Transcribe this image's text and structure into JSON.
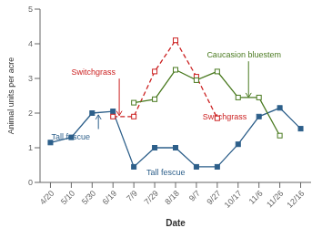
{
  "chart_data": {
    "type": "line",
    "xlabel": "Date",
    "ylabel": "Animal units per acre",
    "categories": [
      "4/20",
      "5/10",
      "5/30",
      "6/19",
      "7/9",
      "7/29",
      "8/18",
      "9/7",
      "9/27",
      "10/17",
      "11/6",
      "11/26",
      "12/16"
    ],
    "ylim": [
      0,
      5
    ],
    "yticks": [
      0,
      1,
      2,
      3,
      4,
      5
    ],
    "grid": false,
    "series": [
      {
        "name": "Tall fescue",
        "color": "#2d5f8a",
        "marker": "square",
        "line_style": "solid",
        "values": [
          1.15,
          1.3,
          2.0,
          2.05,
          0.45,
          1.0,
          1.0,
          0.45,
          0.45,
          1.1,
          1.9,
          2.15,
          1.55
        ]
      },
      {
        "name": "Switchgrass",
        "color": "#cc2222",
        "marker": "open_square",
        "line_style": "dashed",
        "values": [
          null,
          null,
          null,
          1.9,
          1.9,
          3.2,
          4.1,
          3.05,
          1.85,
          null,
          null,
          null,
          null
        ]
      },
      {
        "name": "Caucasion bluestem",
        "color": "#4a7a20",
        "marker": "open_square",
        "line_style": "solid",
        "values": [
          null,
          null,
          null,
          null,
          2.3,
          2.4,
          3.25,
          2.95,
          3.2,
          2.45,
          2.45,
          1.35,
          null
        ]
      }
    ],
    "annotations": [
      {
        "text": "Tall fescue",
        "x": 2.3,
        "y": 1.95,
        "text_x": 0.05,
        "text_y": 1.25,
        "color": "#2d5f8a"
      },
      {
        "text": "Tall fescue",
        "x": 6.8,
        "y": 0.48,
        "text_x": 4.6,
        "text_y": 0.22,
        "color": "#2d5f8a"
      },
      {
        "text": "Switchgrass",
        "x": 3.3,
        "y": 1.93,
        "text_x": 1.0,
        "text_y": 3.1,
        "color": "#cc2222"
      },
      {
        "text": "Switchgrass",
        "x": 8.0,
        "y": 1.85,
        "text_x": 7.3,
        "text_y": 1.82,
        "color": "#cc2222"
      },
      {
        "text": "Caucasion bluestem",
        "x": 9.5,
        "y": 2.45,
        "text_x": 7.5,
        "text_y": 3.6,
        "color": "#4a7a20"
      }
    ]
  }
}
